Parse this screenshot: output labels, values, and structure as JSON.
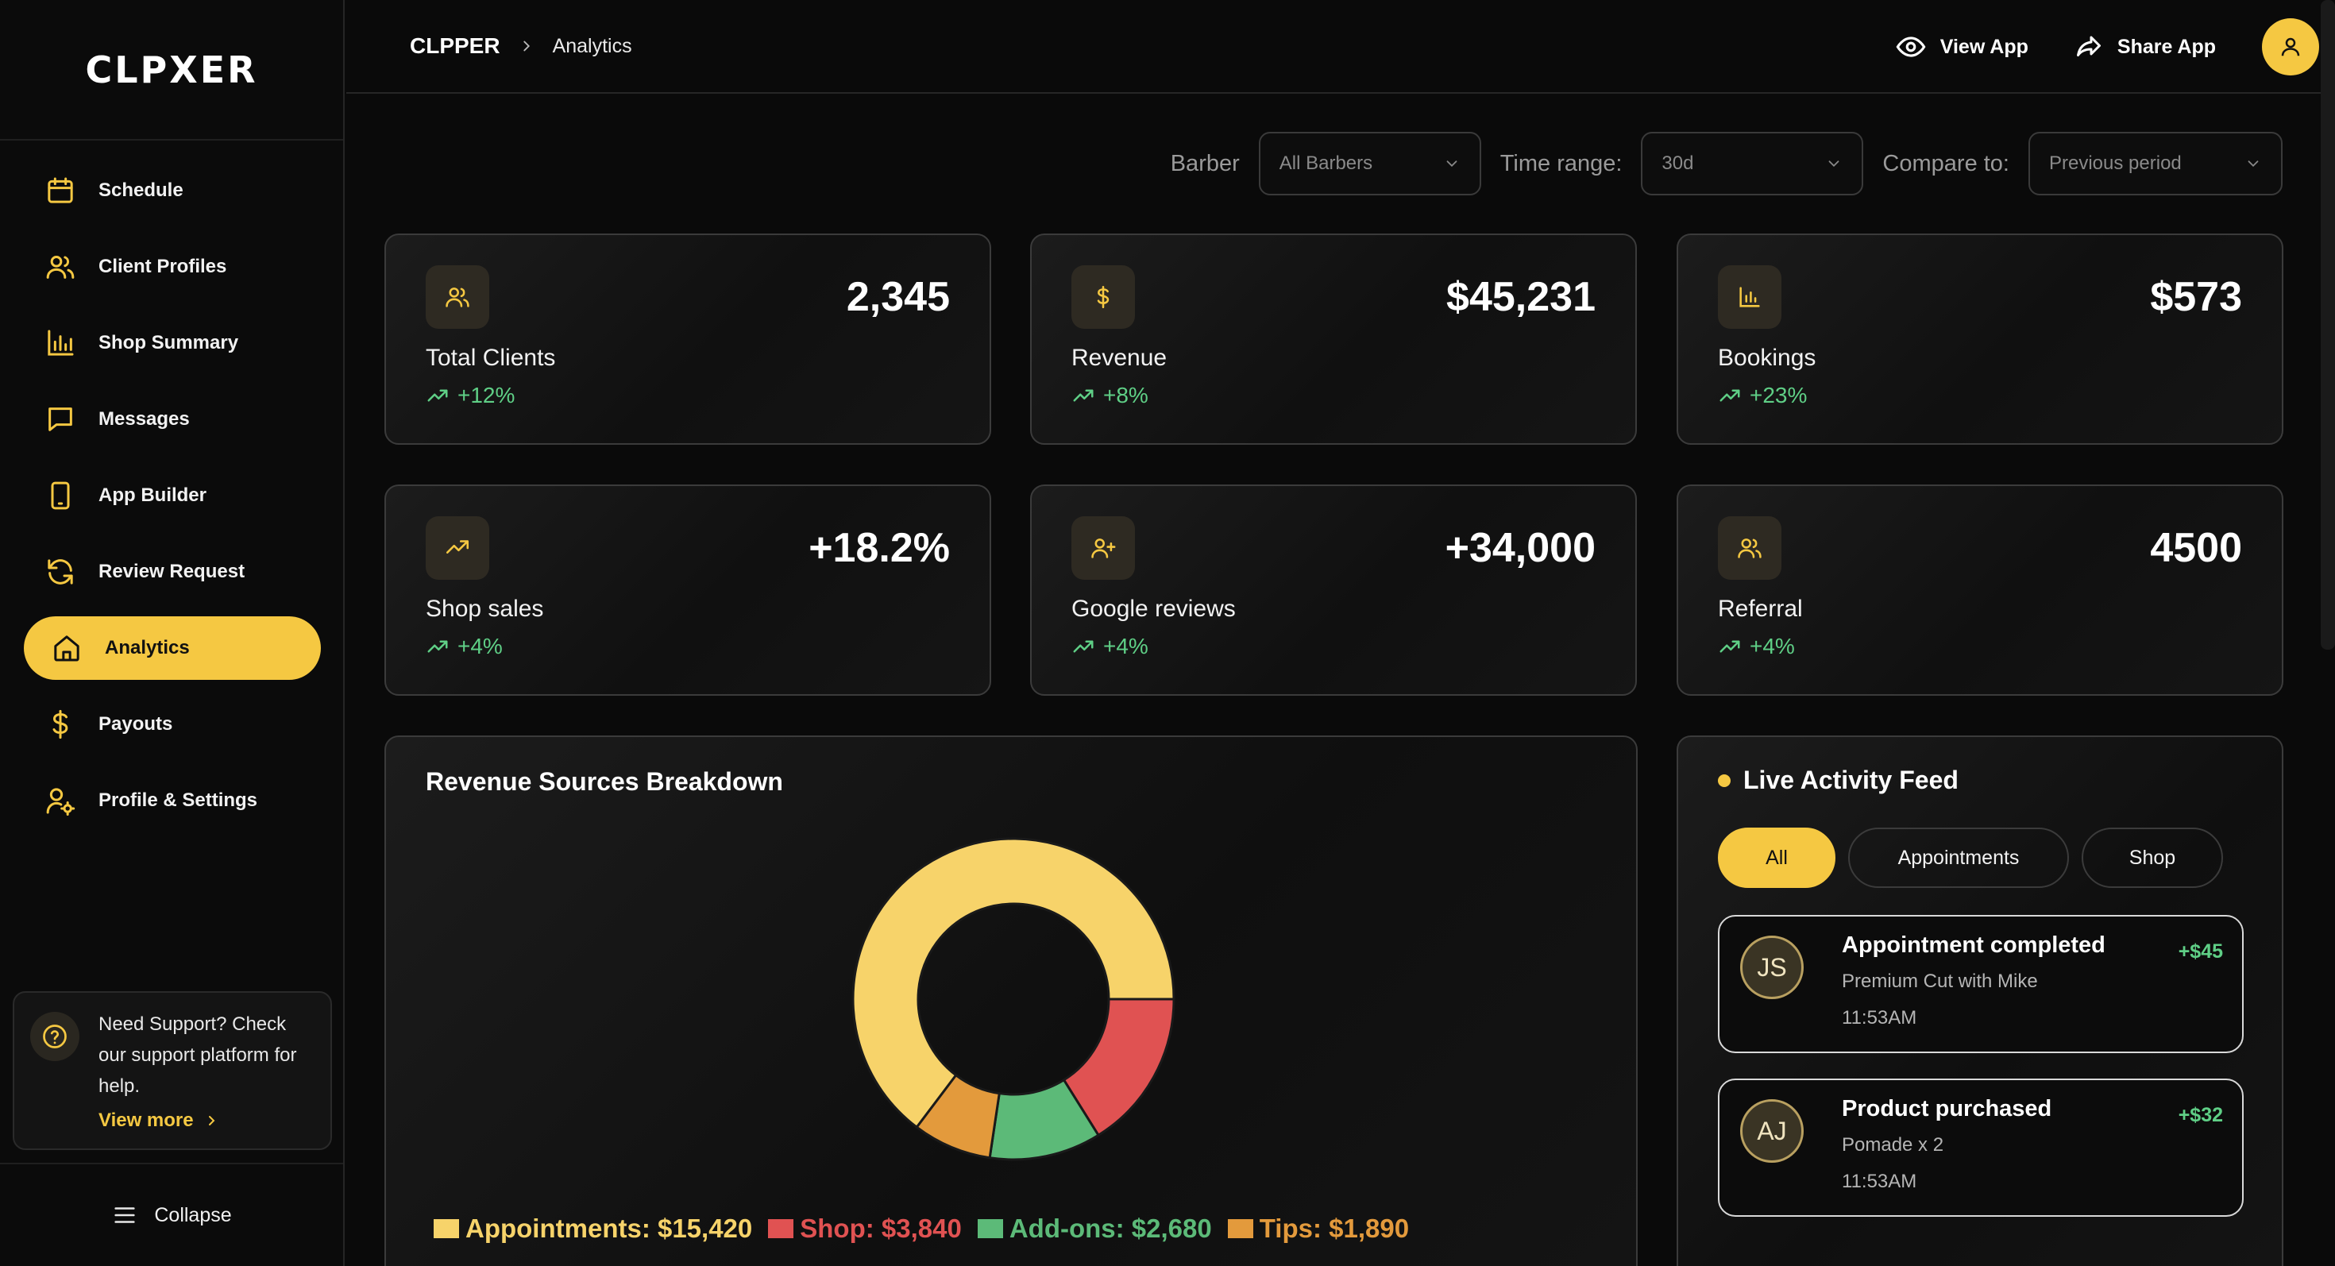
{
  "brand": {
    "logo_text": "CLPXER"
  },
  "sidebar": {
    "items": [
      {
        "label": "Schedule",
        "icon": "calendar-icon",
        "active": false
      },
      {
        "label": "Client Profiles",
        "icon": "users-icon",
        "active": false
      },
      {
        "label": "Shop Summary",
        "icon": "bar-chart-icon",
        "active": false
      },
      {
        "label": "Messages",
        "icon": "message-icon",
        "active": false
      },
      {
        "label": "App Builder",
        "icon": "phone-icon",
        "active": false
      },
      {
        "label": "Review Request",
        "icon": "refresh-icon",
        "active": false
      },
      {
        "label": "Analytics",
        "icon": "home-icon",
        "active": true
      },
      {
        "label": "Payouts",
        "icon": "dollar-icon",
        "active": false
      },
      {
        "label": "Profile & Settings",
        "icon": "user-gear-icon",
        "active": false
      }
    ],
    "support": {
      "text": "Need Support? Check our support platform for help.",
      "link": "View more"
    },
    "collapse_label": "Collapse"
  },
  "header": {
    "breadcrumb": {
      "root": "CLPPER",
      "current": "Analytics"
    },
    "view_app": "View App",
    "share_app": "Share App"
  },
  "filters": {
    "barber": {
      "label": "Barber",
      "value": "All Barbers"
    },
    "time_range": {
      "label": "Time range:",
      "value": "30d"
    },
    "compare": {
      "label": "Compare to:",
      "value": "Previous period"
    }
  },
  "stats": [
    {
      "label": "Total Clients",
      "value": "2,345",
      "delta": "+12%",
      "icon": "users-icon"
    },
    {
      "label": "Revenue",
      "value": "$45,231",
      "delta": "+8%",
      "icon": "dollar-icon"
    },
    {
      "label": "Bookings",
      "value": "$573",
      "delta": "+23%",
      "icon": "bar-chart-icon"
    },
    {
      "label": "Shop sales",
      "value": "+18.2%",
      "delta": "+4%",
      "icon": "trend-up-icon"
    },
    {
      "label": "Google reviews",
      "value": "+34,000",
      "delta": "+4%",
      "icon": "user-plus-icon"
    },
    {
      "label": "Referral",
      "value": "4500",
      "delta": "+4%",
      "icon": "users-icon"
    }
  ],
  "revenue": {
    "title": "Revenue Sources Breakdown",
    "chart_data": {
      "type": "pie",
      "categories": [
        "Appointments",
        "Shop",
        "Add-ons",
        "Tips"
      ],
      "values": [
        15420,
        3840,
        2680,
        1890
      ],
      "colors": [
        "#f7d36a",
        "#e05252",
        "#5cba78",
        "#e39a3c"
      ],
      "legend": [
        "Appointments: $15,420",
        "Shop: $3,840",
        "Add-ons: $2,680",
        "Tips: $1,890"
      ]
    }
  },
  "feed": {
    "title": "Live Activity Feed",
    "tabs": [
      {
        "label": "All",
        "active": true
      },
      {
        "label": "Appointments",
        "active": false
      },
      {
        "label": "Shop",
        "active": false
      }
    ],
    "items": [
      {
        "initials": "JS",
        "title": "Appointment completed",
        "sub": "Premium Cut with Mike",
        "time": "11:53AM",
        "amount": "+$45"
      },
      {
        "initials": "AJ",
        "title": "Product purchased",
        "sub": "Pomade x 2",
        "time": "11:53AM",
        "amount": "+$32"
      }
    ]
  },
  "colors": {
    "accent": "#f5c842",
    "positive": "#5fcf86"
  }
}
